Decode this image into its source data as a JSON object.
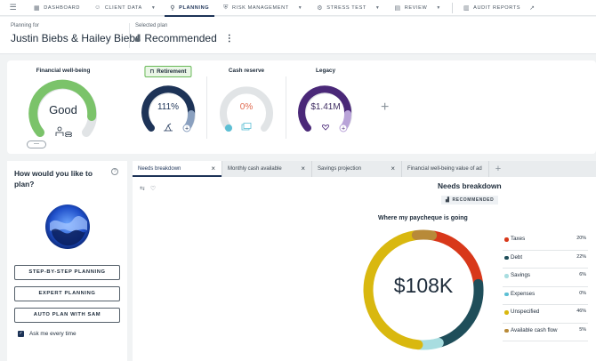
{
  "nav": {
    "items": [
      {
        "label": "DASHBOARD",
        "icon": "dashboard-icon",
        "glyph": "▦",
        "dropdown": false
      },
      {
        "label": "CLIENT DATA",
        "icon": "people-icon",
        "glyph": "☺",
        "dropdown": true
      },
      {
        "label": "PLANNING",
        "icon": "planning-icon",
        "glyph": "⚲",
        "dropdown": false
      },
      {
        "label": "RISK MANAGEMENT",
        "icon": "shield-icon",
        "glyph": "⛨",
        "dropdown": true
      },
      {
        "label": "STRESS TEST",
        "icon": "gear-icon",
        "glyph": "⚙",
        "dropdown": true
      },
      {
        "label": "REVIEW",
        "icon": "review-icon",
        "glyph": "▤",
        "dropdown": true
      },
      {
        "label": "AUDIT REPORTS",
        "icon": "report-icon",
        "glyph": "▥",
        "dropdown": false
      }
    ],
    "active_index": 2
  },
  "header": {
    "planning_for_label": "Planning for",
    "client_name": "Justin Biebs & Hailey Biebs",
    "selected_plan_label": "Selected plan",
    "selected_plan": "Recommended"
  },
  "cards": {
    "wellbeing": {
      "title": "Financial well-being",
      "value": "Good",
      "level": 0.75,
      "color": "#7bc36a"
    },
    "retirement": {
      "title": "Retirement",
      "value": "111%",
      "level": 0.9,
      "color": "#1d3357"
    },
    "cash_reserve": {
      "title": "Cash reserve",
      "value": "0%",
      "level": 0,
      "color": "#e06a4f"
    },
    "legacy": {
      "title": "Legacy",
      "value": "$1.41M",
      "level": 0.8,
      "color": "#5a3a8e"
    },
    "more_label": "—"
  },
  "left_panel": {
    "title": "How would you like to plan?",
    "buttons": [
      "STEP-BY-STEP PLANNING",
      "EXPERT PLANNING",
      "AUTO PLAN WITH SAM"
    ],
    "checkbox_label": "Ask me every time",
    "checked": true
  },
  "tabs": [
    "Needs breakdown",
    "Monthly cash available",
    "Savings projection",
    "Financial well-being value of ad"
  ],
  "active_tab": 0,
  "needs": {
    "title": "Needs breakdown",
    "badge": "RECOMMENDED",
    "donut_title": "Where my paycheque is going",
    "center_value": "$108K"
  },
  "chart_data": {
    "type": "pie",
    "title": "Where my paycheque is going",
    "categories": [
      "Taxes",
      "Debt",
      "Savings",
      "Expenses",
      "Unspecified",
      "Available cash flow"
    ],
    "values": [
      20,
      22,
      6,
      0,
      46,
      5
    ],
    "value_labels": [
      "20%",
      "22%",
      "6%",
      "0%",
      "46%",
      "5%"
    ],
    "colors": [
      "#d8381a",
      "#1f4e5a",
      "#a8dde0",
      "#5cbfd4",
      "#d9b80f",
      "#b88a38"
    ],
    "legend": "right"
  }
}
